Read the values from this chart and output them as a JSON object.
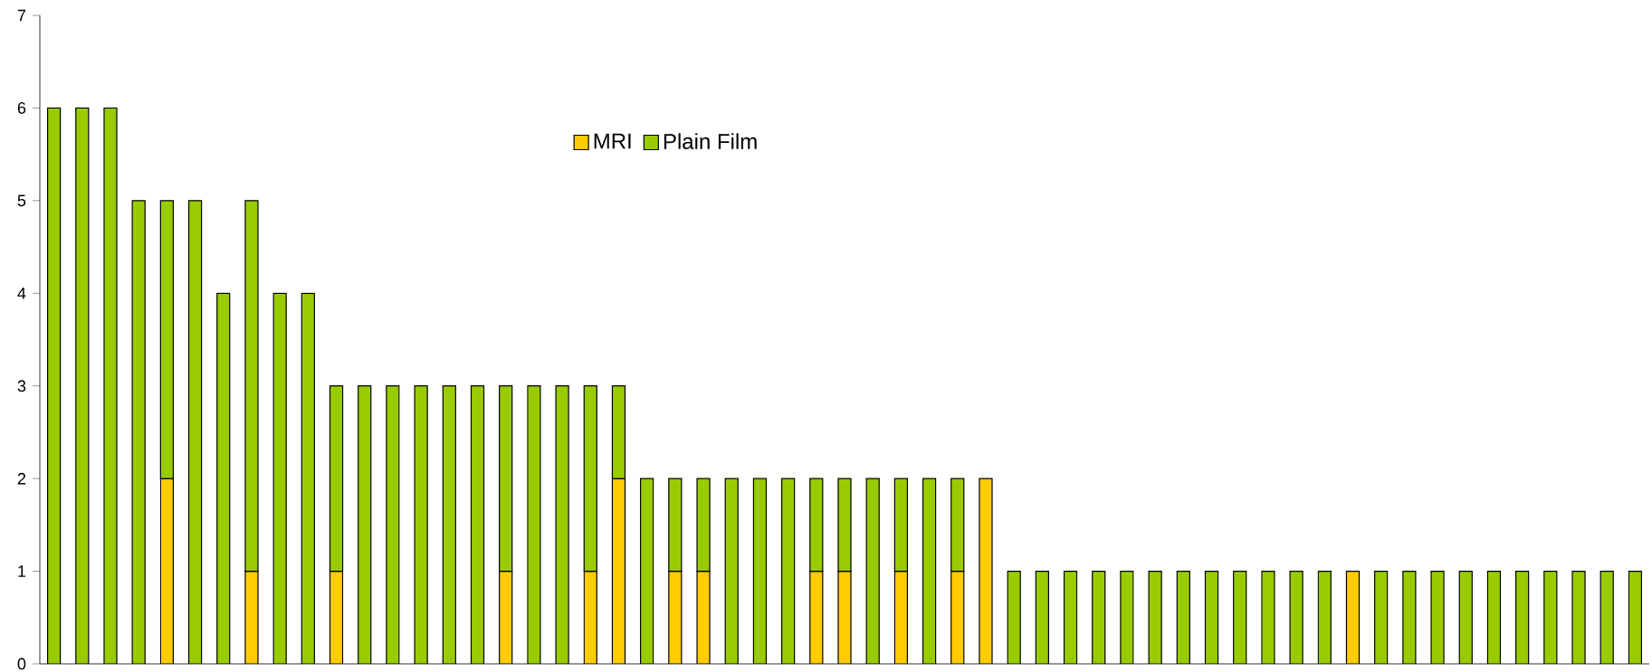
{
  "chart_data": {
    "type": "bar",
    "stacked": true,
    "categories": [
      null,
      null,
      null,
      null,
      null,
      null,
      null,
      null,
      null,
      null,
      null,
      null,
      null,
      null,
      null,
      null,
      null,
      null,
      null,
      null,
      null,
      null,
      null,
      null,
      null,
      null,
      null,
      null,
      null,
      null,
      null,
      null,
      null,
      null,
      null,
      null,
      null,
      null,
      null,
      null,
      null,
      null,
      null,
      null,
      null,
      null,
      null,
      null,
      null,
      null,
      null,
      null,
      null,
      null,
      null,
      null,
      null
    ],
    "series": [
      {
        "name": "MRI",
        "color": "#ffcc00",
        "values": [
          null,
          null,
          null,
          null,
          2,
          null,
          null,
          1,
          null,
          null,
          1,
          null,
          null,
          null,
          null,
          null,
          1,
          null,
          null,
          1,
          2,
          null,
          1,
          1,
          null,
          null,
          null,
          1,
          1,
          null,
          1,
          null,
          1,
          2,
          null,
          null,
          null,
          null,
          null,
          null,
          null,
          null,
          null,
          null,
          null,
          null,
          1,
          null,
          null,
          null,
          null,
          null,
          null,
          null,
          null,
          null,
          null
        ]
      },
      {
        "name": "Plain Film",
        "color": "#99cc00",
        "values": [
          6,
          6,
          6,
          5,
          3,
          5,
          4,
          4,
          4,
          4,
          2,
          3,
          3,
          3,
          3,
          3,
          2,
          3,
          3,
          2,
          1,
          2,
          1,
          1,
          2,
          2,
          2,
          1,
          1,
          2,
          1,
          2,
          1,
          null,
          1,
          1,
          1,
          1,
          1,
          1,
          1,
          1,
          1,
          1,
          1,
          1,
          null,
          1,
          1,
          1,
          1,
          1,
          1,
          1,
          1,
          1,
          1
        ]
      }
    ],
    "ylim": [
      0,
      7
    ],
    "yticks": [
      0,
      1,
      2,
      3,
      4,
      5,
      6,
      7
    ],
    "tick_labels": "y",
    "legend": "top"
  }
}
